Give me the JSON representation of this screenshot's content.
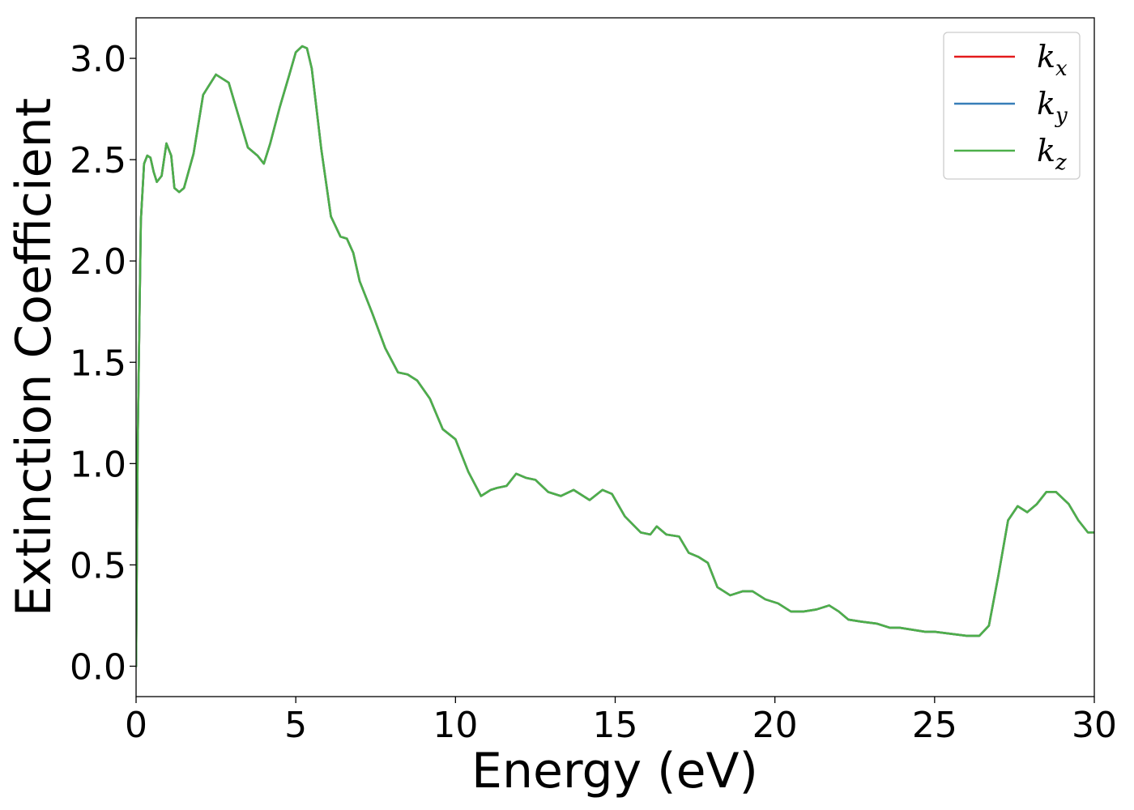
{
  "chart_data": {
    "type": "line",
    "title": "",
    "xlabel": "Energy (eV)",
    "ylabel": "Extinction Coefficient",
    "xlim": [
      0,
      30
    ],
    "ylim": [
      -0.15,
      3.2
    ],
    "xticks": [
      0,
      5,
      10,
      15,
      20,
      25,
      30
    ],
    "xtick_labels": [
      "0",
      "5",
      "10",
      "15",
      "20",
      "25",
      "30"
    ],
    "yticks": [
      0.0,
      0.5,
      1.0,
      1.5,
      2.0,
      2.5,
      3.0
    ],
    "ytick_labels": [
      "0.0",
      "0.5",
      "1.0",
      "1.5",
      "2.0",
      "2.5",
      "3.0"
    ],
    "grid": false,
    "legend_position": "top-right",
    "series": [
      {
        "name": "k",
        "subscript": "x",
        "color": "#e41a1c",
        "x": [
          0.0,
          0.05,
          0.15,
          0.25,
          0.35,
          0.45,
          0.55,
          0.65,
          0.8,
          0.95,
          1.1,
          1.2,
          1.35,
          1.5,
          1.8,
          2.1,
          2.5,
          2.9,
          3.2,
          3.5,
          3.8,
          4.0,
          4.2,
          4.5,
          4.8,
          5.0,
          5.2,
          5.35,
          5.5,
          5.8,
          6.1,
          6.4,
          6.6,
          6.8,
          7.0,
          7.4,
          7.8,
          8.2,
          8.5,
          8.8,
          9.2,
          9.6,
          10.0,
          10.4,
          10.8,
          11.1,
          11.3,
          11.6,
          11.9,
          12.2,
          12.5,
          12.9,
          13.3,
          13.7,
          14.0,
          14.2,
          14.6,
          14.9,
          15.3,
          15.8,
          16.1,
          16.3,
          16.6,
          17.0,
          17.3,
          17.6,
          17.9,
          18.2,
          18.6,
          19.0,
          19.3,
          19.7,
          20.1,
          20.5,
          20.9,
          21.3,
          21.7,
          22.0,
          22.3,
          22.7,
          23.2,
          23.6,
          23.9,
          24.3,
          24.7,
          25.0,
          25.5,
          26.0,
          26.4,
          26.7,
          27.0,
          27.3,
          27.6,
          27.9,
          28.2,
          28.5,
          28.8,
          29.2,
          29.5,
          29.8,
          30.0
        ],
        "y": [
          0.0,
          1.1,
          2.2,
          2.48,
          2.52,
          2.51,
          2.44,
          2.39,
          2.42,
          2.58,
          2.52,
          2.36,
          2.34,
          2.36,
          2.53,
          2.82,
          2.92,
          2.88,
          2.72,
          2.56,
          2.52,
          2.48,
          2.58,
          2.76,
          2.92,
          3.03,
          3.06,
          3.05,
          2.95,
          2.55,
          2.22,
          2.12,
          2.11,
          2.04,
          1.9,
          1.74,
          1.57,
          1.45,
          1.44,
          1.41,
          1.32,
          1.17,
          1.12,
          0.96,
          0.84,
          0.87,
          0.88,
          0.89,
          0.95,
          0.93,
          0.92,
          0.86,
          0.84,
          0.87,
          0.84,
          0.82,
          0.87,
          0.85,
          0.74,
          0.66,
          0.65,
          0.69,
          0.65,
          0.64,
          0.56,
          0.54,
          0.51,
          0.39,
          0.35,
          0.37,
          0.37,
          0.33,
          0.31,
          0.27,
          0.27,
          0.28,
          0.3,
          0.27,
          0.23,
          0.22,
          0.21,
          0.19,
          0.19,
          0.18,
          0.17,
          0.17,
          0.16,
          0.15,
          0.15,
          0.2,
          0.45,
          0.72,
          0.79,
          0.76,
          0.8,
          0.86,
          0.86,
          0.8,
          0.72,
          0.66,
          0.66
        ]
      },
      {
        "name": "k",
        "subscript": "y",
        "color": "#377eb8",
        "x": [
          0.0,
          0.05,
          0.15,
          0.25,
          0.35,
          0.45,
          0.55,
          0.65,
          0.8,
          0.95,
          1.1,
          1.2,
          1.35,
          1.5,
          1.8,
          2.1,
          2.5,
          2.9,
          3.2,
          3.5,
          3.8,
          4.0,
          4.2,
          4.5,
          4.8,
          5.0,
          5.2,
          5.35,
          5.5,
          5.8,
          6.1,
          6.4,
          6.6,
          6.8,
          7.0,
          7.4,
          7.8,
          8.2,
          8.5,
          8.8,
          9.2,
          9.6,
          10.0,
          10.4,
          10.8,
          11.1,
          11.3,
          11.6,
          11.9,
          12.2,
          12.5,
          12.9,
          13.3,
          13.7,
          14.0,
          14.2,
          14.6,
          14.9,
          15.3,
          15.8,
          16.1,
          16.3,
          16.6,
          17.0,
          17.3,
          17.6,
          17.9,
          18.2,
          18.6,
          19.0,
          19.3,
          19.7,
          20.1,
          20.5,
          20.9,
          21.3,
          21.7,
          22.0,
          22.3,
          22.7,
          23.2,
          23.6,
          23.9,
          24.3,
          24.7,
          25.0,
          25.5,
          26.0,
          26.4,
          26.7,
          27.0,
          27.3,
          27.6,
          27.9,
          28.2,
          28.5,
          28.8,
          29.2,
          29.5,
          29.8,
          30.0
        ],
        "y": [
          0.0,
          1.1,
          2.2,
          2.48,
          2.52,
          2.51,
          2.44,
          2.39,
          2.42,
          2.58,
          2.52,
          2.36,
          2.34,
          2.36,
          2.53,
          2.82,
          2.92,
          2.88,
          2.72,
          2.56,
          2.52,
          2.48,
          2.58,
          2.76,
          2.92,
          3.03,
          3.06,
          3.05,
          2.95,
          2.55,
          2.22,
          2.12,
          2.11,
          2.04,
          1.9,
          1.74,
          1.57,
          1.45,
          1.44,
          1.41,
          1.32,
          1.17,
          1.12,
          0.96,
          0.84,
          0.87,
          0.88,
          0.89,
          0.95,
          0.93,
          0.92,
          0.86,
          0.84,
          0.87,
          0.84,
          0.82,
          0.87,
          0.85,
          0.74,
          0.66,
          0.65,
          0.69,
          0.65,
          0.64,
          0.56,
          0.54,
          0.51,
          0.39,
          0.35,
          0.37,
          0.37,
          0.33,
          0.31,
          0.27,
          0.27,
          0.28,
          0.3,
          0.27,
          0.23,
          0.22,
          0.21,
          0.19,
          0.19,
          0.18,
          0.17,
          0.17,
          0.16,
          0.15,
          0.15,
          0.2,
          0.45,
          0.72,
          0.79,
          0.76,
          0.8,
          0.86,
          0.86,
          0.8,
          0.72,
          0.66,
          0.66
        ]
      },
      {
        "name": "k",
        "subscript": "z",
        "color": "#4daf4a",
        "x": [
          0.0,
          0.05,
          0.15,
          0.25,
          0.35,
          0.45,
          0.55,
          0.65,
          0.8,
          0.95,
          1.1,
          1.2,
          1.35,
          1.5,
          1.8,
          2.1,
          2.5,
          2.9,
          3.2,
          3.5,
          3.8,
          4.0,
          4.2,
          4.5,
          4.8,
          5.0,
          5.2,
          5.35,
          5.5,
          5.8,
          6.1,
          6.4,
          6.6,
          6.8,
          7.0,
          7.4,
          7.8,
          8.2,
          8.5,
          8.8,
          9.2,
          9.6,
          10.0,
          10.4,
          10.8,
          11.1,
          11.3,
          11.6,
          11.9,
          12.2,
          12.5,
          12.9,
          13.3,
          13.7,
          14.0,
          14.2,
          14.6,
          14.9,
          15.3,
          15.8,
          16.1,
          16.3,
          16.6,
          17.0,
          17.3,
          17.6,
          17.9,
          18.2,
          18.6,
          19.0,
          19.3,
          19.7,
          20.1,
          20.5,
          20.9,
          21.3,
          21.7,
          22.0,
          22.3,
          22.7,
          23.2,
          23.6,
          23.9,
          24.3,
          24.7,
          25.0,
          25.5,
          26.0,
          26.4,
          26.7,
          27.0,
          27.3,
          27.6,
          27.9,
          28.2,
          28.5,
          28.8,
          29.2,
          29.5,
          29.8,
          30.0
        ],
        "y": [
          0.0,
          1.1,
          2.2,
          2.48,
          2.52,
          2.51,
          2.44,
          2.39,
          2.42,
          2.58,
          2.52,
          2.36,
          2.34,
          2.36,
          2.53,
          2.82,
          2.92,
          2.88,
          2.72,
          2.56,
          2.52,
          2.48,
          2.58,
          2.76,
          2.92,
          3.03,
          3.06,
          3.05,
          2.95,
          2.55,
          2.22,
          2.12,
          2.11,
          2.04,
          1.9,
          1.74,
          1.57,
          1.45,
          1.44,
          1.41,
          1.32,
          1.17,
          1.12,
          0.96,
          0.84,
          0.87,
          0.88,
          0.89,
          0.95,
          0.93,
          0.92,
          0.86,
          0.84,
          0.87,
          0.84,
          0.82,
          0.87,
          0.85,
          0.74,
          0.66,
          0.65,
          0.69,
          0.65,
          0.64,
          0.56,
          0.54,
          0.51,
          0.39,
          0.35,
          0.37,
          0.37,
          0.33,
          0.31,
          0.27,
          0.27,
          0.28,
          0.3,
          0.27,
          0.23,
          0.22,
          0.21,
          0.19,
          0.19,
          0.18,
          0.17,
          0.17,
          0.16,
          0.15,
          0.15,
          0.2,
          0.45,
          0.72,
          0.79,
          0.76,
          0.8,
          0.86,
          0.86,
          0.8,
          0.72,
          0.66,
          0.66
        ]
      }
    ]
  }
}
